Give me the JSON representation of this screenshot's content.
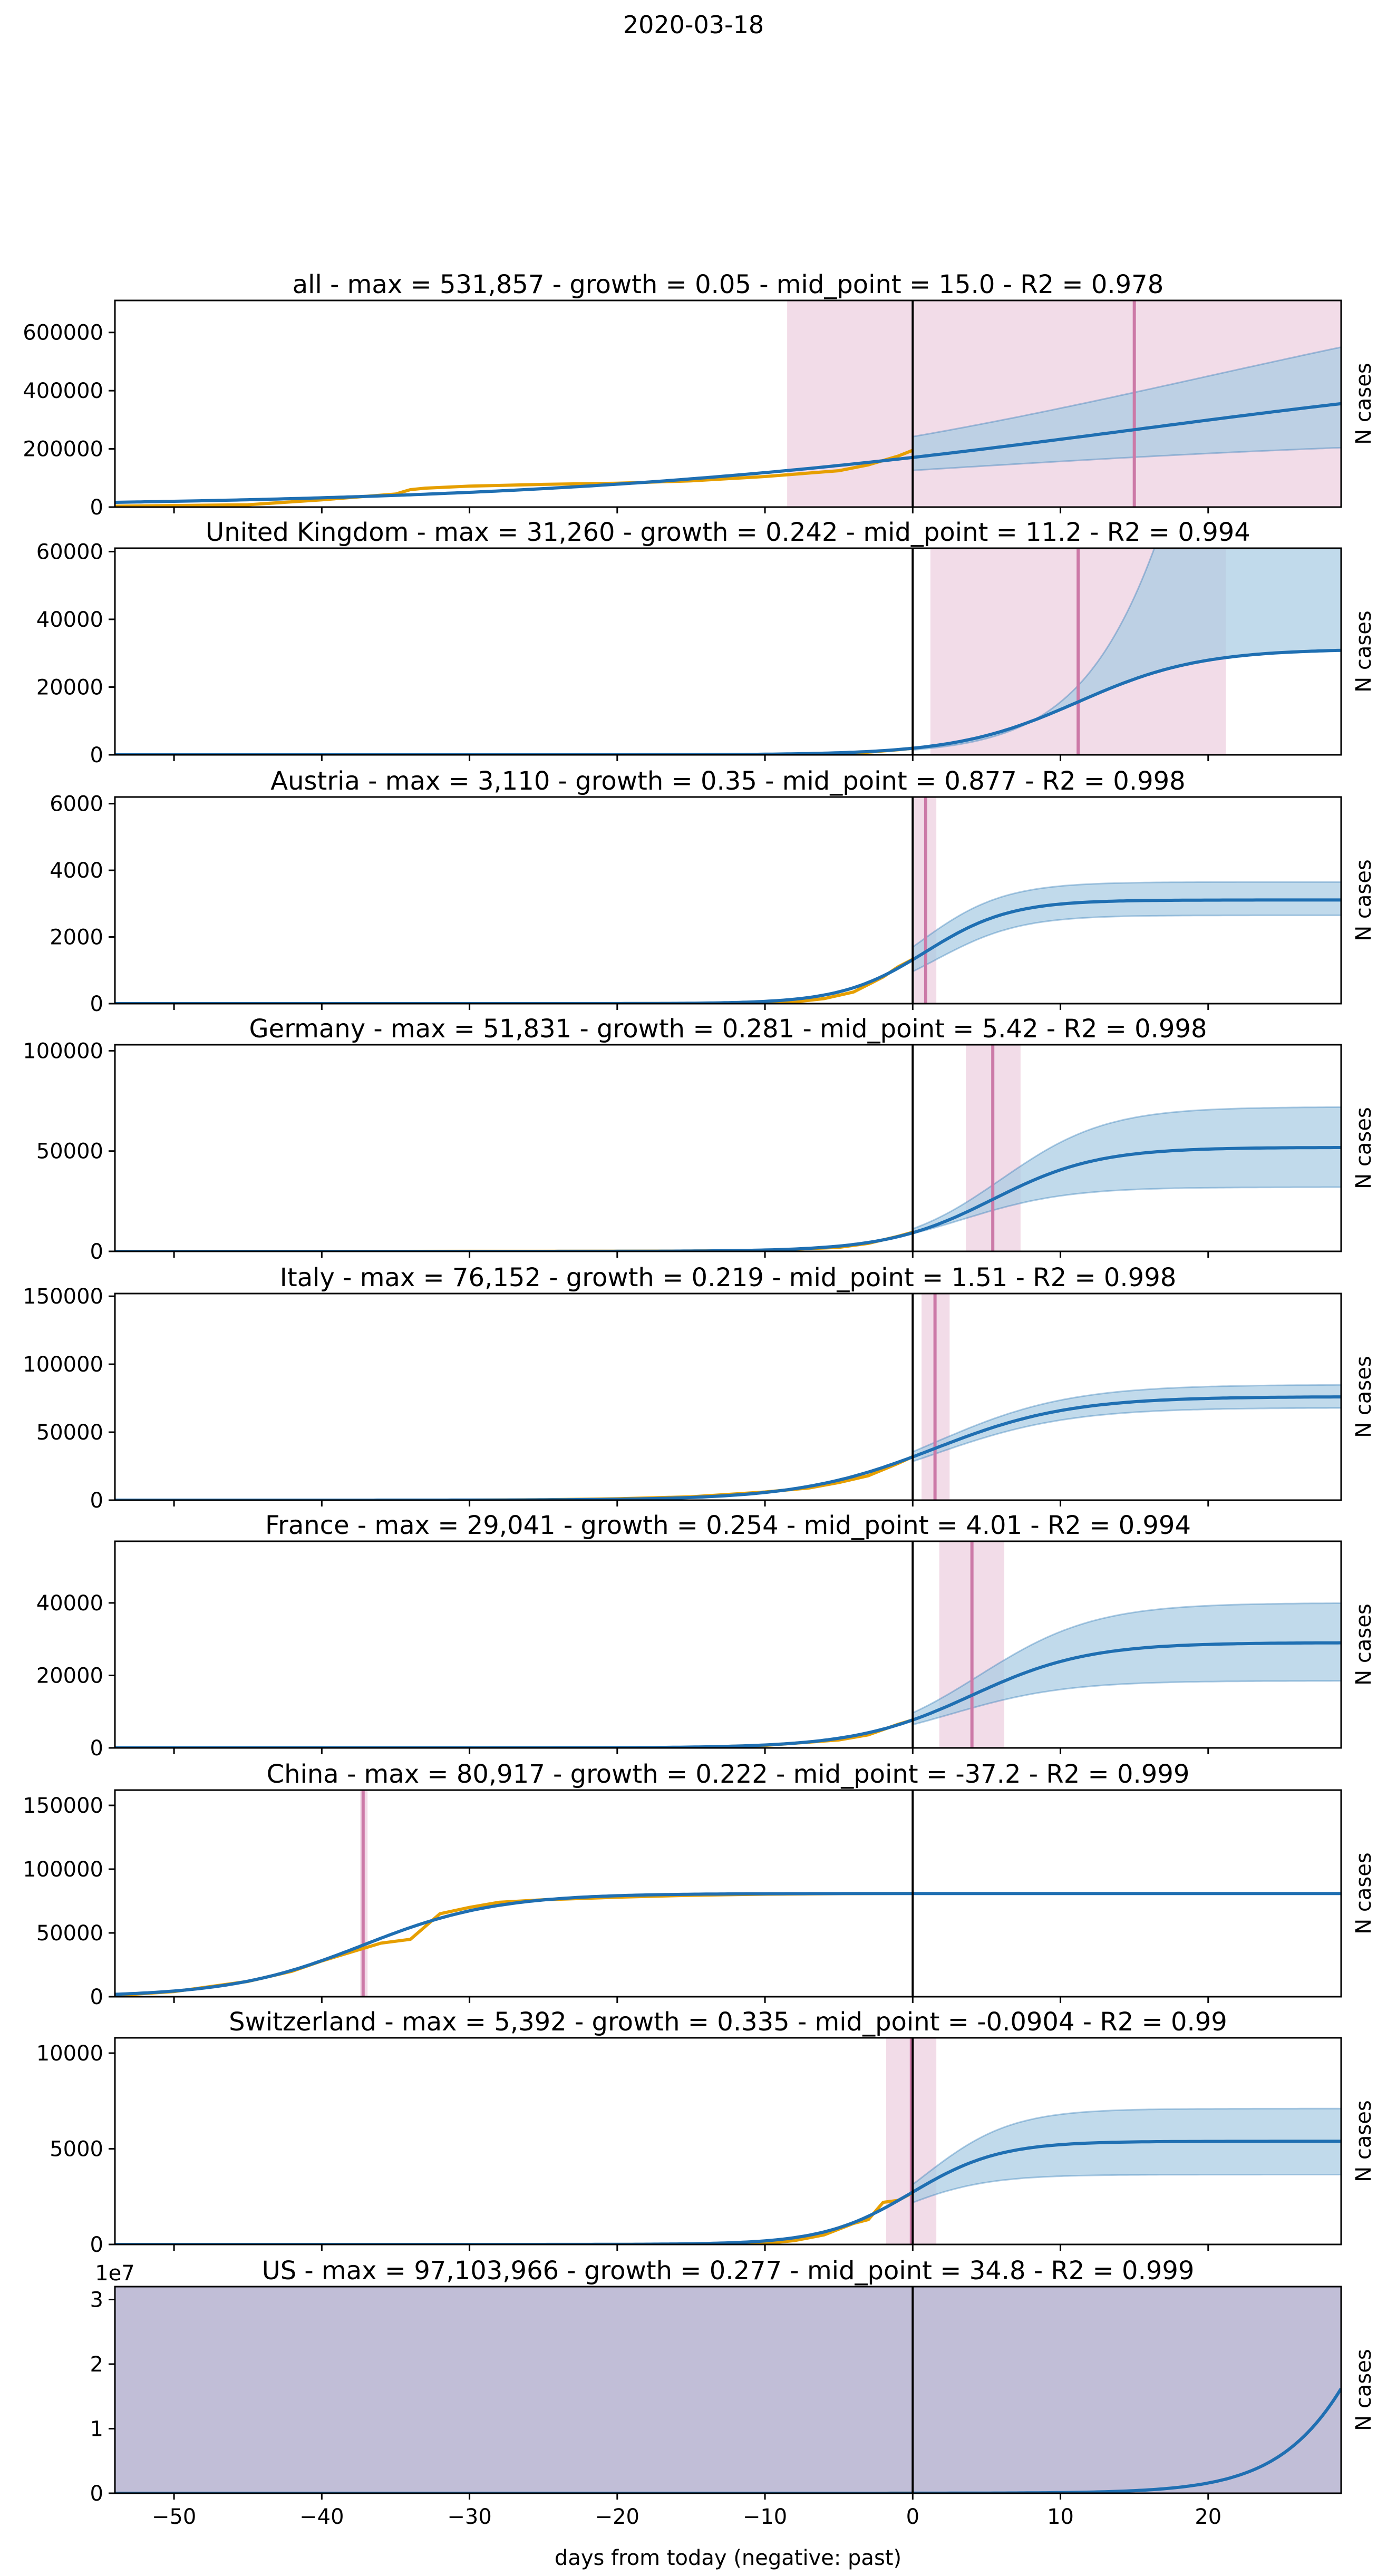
{
  "figure": {
    "title": "2020-03-18",
    "xlabel": "days from today (negative: past)",
    "x_ticks": [
      -50,
      -40,
      -30,
      -20,
      -10,
      0,
      10,
      20
    ],
    "xlim": [
      -54,
      29
    ],
    "colors": {
      "fit": "#1f6fb2",
      "data": "#e69f00",
      "ci_fill": "#a6cbe3",
      "mid_line": "#cc79a7",
      "mid_fill": "#e8bfd6",
      "today_line": "#000000"
    }
  },
  "chart_data": [
    {
      "type": "line",
      "title": "all - max = 531,857 - growth = 0.05 - mid_point = 15.0 - R2 = 0.978",
      "ylabel": "N cases",
      "ylim": [
        0,
        710000
      ],
      "y_ticks": [
        0,
        200000,
        400000,
        600000
      ],
      "y_tick_labels": [
        "0",
        "200000",
        "400000",
        "600000"
      ],
      "fit": {
        "max": 531857,
        "growth": 0.05,
        "mid_point": 15.0
      },
      "ci": {
        "upper": {
          "max": 900000,
          "growth": 0.05,
          "mid_point": 20
        },
        "lower": {
          "max": 252000,
          "growth": 0.05,
          "mid_point": 0
        }
      },
      "mid_point_band": [
        -8.5,
        29
      ],
      "data": {
        "x": [
          -54,
          -45,
          -40,
          -35,
          -34,
          -33,
          -30,
          -25,
          -20,
          -15,
          -10,
          -5,
          -3,
          -1,
          0
        ],
        "y": [
          3000,
          8000,
          25000,
          45000,
          60000,
          65000,
          72000,
          78000,
          82000,
          90000,
          105000,
          125000,
          145000,
          175000,
          195000
        ]
      }
    },
    {
      "type": "line",
      "title": "United Kingdom - max = 31,260 - growth = 0.242 - mid_point = 11.2 - R2 = 0.994",
      "ylabel": "N cases",
      "ylim": [
        0,
        61000
      ],
      "y_ticks": [
        0,
        20000,
        40000,
        60000
      ],
      "y_tick_labels": [
        "0",
        "20000",
        "40000",
        "60000"
      ],
      "fit": {
        "max": 31260,
        "growth": 0.242,
        "mid_point": 11.2
      },
      "ci": {
        "upper": {
          "max": 300000,
          "growth": 0.242,
          "mid_point": 22
        },
        "lower": {
          "max": 31260,
          "growth": 0.242,
          "mid_point": 11.2
        }
      },
      "mid_point_band": [
        1.2,
        21.2
      ],
      "data": {
        "x": [
          -40,
          -30,
          -20,
          -15,
          -10,
          -7,
          -5,
          -3,
          -1,
          0
        ],
        "y": [
          0,
          2,
          5,
          10,
          50,
          200,
          400,
          800,
          1500,
          1950
        ]
      }
    },
    {
      "type": "line",
      "title": "Austria - max = 3,110 - growth = 0.35 - mid_point = 0.877 - R2 = 0.998",
      "ylabel": "N cases",
      "ylim": [
        0,
        6200
      ],
      "y_ticks": [
        0,
        2000,
        4000,
        6000
      ],
      "y_tick_labels": [
        "0",
        "2000",
        "4000",
        "6000"
      ],
      "fit": {
        "max": 3110,
        "growth": 0.35,
        "mid_point": 0.877
      },
      "ci": {
        "upper": {
          "max": 3650,
          "growth": 0.35,
          "mid_point": 0.4
        },
        "lower": {
          "max": 2650,
          "growth": 0.35,
          "mid_point": 1.6
        }
      },
      "mid_point_band": [
        0.1,
        1.6
      ],
      "data": {
        "x": [
          -22,
          -15,
          -10,
          -8,
          -6,
          -4,
          -2,
          -1,
          0
        ],
        "y": [
          0,
          5,
          20,
          50,
          150,
          350,
          800,
          1100,
          1330
        ]
      }
    },
    {
      "type": "line",
      "title": "Germany - max = 51,831 - growth = 0.281 - mid_point = 5.42 - R2 = 0.998",
      "ylabel": "N cases",
      "ylim": [
        0,
        103000
      ],
      "y_ticks": [
        0,
        50000,
        100000
      ],
      "y_tick_labels": [
        "0",
        "50000",
        "100000"
      ],
      "fit": {
        "max": 51831,
        "growth": 0.281,
        "mid_point": 5.42
      },
      "ci": {
        "upper": {
          "max": 72000,
          "growth": 0.281,
          "mid_point": 6
        },
        "lower": {
          "max": 32000,
          "growth": 0.281,
          "mid_point": 3.4
        }
      },
      "mid_point_band": [
        3.6,
        7.3
      ],
      "data": {
        "x": [
          -54,
          -40,
          -30,
          -20,
          -15,
          -10,
          -5,
          -3,
          -1,
          0
        ],
        "y": [
          0,
          10,
          20,
          50,
          150,
          500,
          2000,
          4000,
          7500,
          9500
        ]
      }
    },
    {
      "type": "line",
      "title": "Italy - max = 76,152 - growth = 0.219 - mid_point = 1.51 - R2 = 0.998",
      "ylabel": "N cases",
      "ylim": [
        0,
        152000
      ],
      "y_ticks": [
        0,
        50000,
        100000,
        150000
      ],
      "y_tick_labels": [
        "0",
        "50000",
        "100000",
        "150000"
      ],
      "fit": {
        "max": 76152,
        "growth": 0.219,
        "mid_point": 1.51
      },
      "ci": {
        "upper": {
          "max": 85000,
          "growth": 0.219,
          "mid_point": 1.5
        },
        "lower": {
          "max": 68000,
          "growth": 0.219,
          "mid_point": 1.5
        }
      },
      "mid_point_band": [
        0.6,
        2.5
      ],
      "data": {
        "x": [
          -47,
          -30,
          -25,
          -20,
          -15,
          -10,
          -7,
          -5,
          -3,
          -1,
          0
        ],
        "y": [
          0,
          3,
          300,
          1000,
          2500,
          6000,
          9000,
          13000,
          18000,
          27000,
          32000
        ]
      }
    },
    {
      "type": "line",
      "title": "France - max = 29,041 - growth = 0.254 - mid_point = 4.01 - R2 = 0.994",
      "ylabel": "N cases",
      "ylim": [
        0,
        57000
      ],
      "y_ticks": [
        0,
        20000,
        40000
      ],
      "y_tick_labels": [
        "0",
        "20000",
        "40000"
      ],
      "fit": {
        "max": 29041,
        "growth": 0.254,
        "mid_point": 4.01
      },
      "ci": {
        "upper": {
          "max": 40000,
          "growth": 0.254,
          "mid_point": 4.5
        },
        "lower": {
          "max": 18500,
          "growth": 0.254,
          "mid_point": 2.5
        }
      },
      "mid_point_band": [
        1.8,
        6.2
      ],
      "data": {
        "x": [
          -54,
          -40,
          -30,
          -20,
          -15,
          -10,
          -5,
          -3,
          -1,
          0
        ],
        "y": [
          0,
          10,
          20,
          50,
          150,
          700,
          2200,
          3600,
          6500,
          7700
        ]
      }
    },
    {
      "type": "line",
      "title": "China - max = 80,917 - growth = 0.222 - mid_point = -37.2 - R2 = 0.999",
      "ylabel": "N cases",
      "ylim": [
        0,
        162000
      ],
      "y_ticks": [
        0,
        50000,
        100000,
        150000
      ],
      "y_tick_labels": [
        "0",
        "50000",
        "100000",
        "150000"
      ],
      "fit": {
        "max": 80917,
        "growth": 0.222,
        "mid_point": -37.2
      },
      "ci": {
        "upper": {
          "max": 80917,
          "growth": 0.222,
          "mid_point": -37.2
        },
        "lower": {
          "max": 80917,
          "growth": 0.222,
          "mid_point": -37.2
        }
      },
      "mid_point_band": [
        -37.4,
        -36.9
      ],
      "data": {
        "x": [
          -54,
          -50,
          -45,
          -42,
          -40,
          -38,
          -36,
          -34,
          -33,
          -32,
          -30,
          -28,
          -25,
          -20,
          -15,
          -10,
          -5,
          0
        ],
        "y": [
          1000,
          4000,
          12000,
          20000,
          28000,
          35000,
          42000,
          45000,
          55000,
          65000,
          70000,
          74000,
          76000,
          78000,
          79500,
          80400,
          80800,
          81000
        ]
      }
    },
    {
      "type": "line",
      "title": "Switzerland - max = 5,392 - growth = 0.335 - mid_point = -0.0904 - R2 = 0.99",
      "ylabel": "N cases",
      "ylim": [
        0,
        10800
      ],
      "y_ticks": [
        0,
        5000,
        10000
      ],
      "y_tick_labels": [
        "0",
        "5000",
        "10000"
      ],
      "fit": {
        "max": 5392,
        "growth": 0.335,
        "mid_point": -0.0904
      },
      "ci": {
        "upper": {
          "max": 7100,
          "growth": 0.335,
          "mid_point": 0.7
        },
        "lower": {
          "max": 3650,
          "growth": 0.335,
          "mid_point": -1.2
        }
      },
      "mid_point_band": [
        -1.8,
        1.6
      ],
      "data": {
        "x": [
          -20,
          -15,
          -10,
          -8,
          -6,
          -4,
          -3,
          -2,
          -1,
          0
        ],
        "y": [
          0,
          10,
          50,
          200,
          500,
          1100,
          1300,
          2200,
          2300,
          2700
        ]
      }
    },
    {
      "type": "line",
      "title": "US - max = 97,103,966 - growth = 0.277 - mid_point = 34.8 - R2 = 0.999",
      "ylabel": "N cases",
      "y_scale_label": "1e7",
      "ylim": [
        0,
        32000000
      ],
      "y_ticks": [
        0,
        10000000,
        20000000,
        30000000
      ],
      "y_tick_labels": [
        "0",
        "1",
        "2",
        "3"
      ],
      "fit": {
        "max": 97103966,
        "growth": 0.277,
        "mid_point": 34.8
      },
      "ci": {
        "upper": {
          "max": 97103966,
          "growth": 0.277,
          "mid_point": 34.8
        },
        "lower": {
          "max": 97103966,
          "growth": 0.277,
          "mid_point": 34.8
        }
      },
      "mid_point_band": [
        -54,
        29
      ],
      "full_overlay": true,
      "data": {
        "x": [
          -54,
          -20,
          -10,
          -5,
          0
        ],
        "y": [
          0,
          0,
          100,
          1000,
          6500
        ]
      }
    }
  ]
}
